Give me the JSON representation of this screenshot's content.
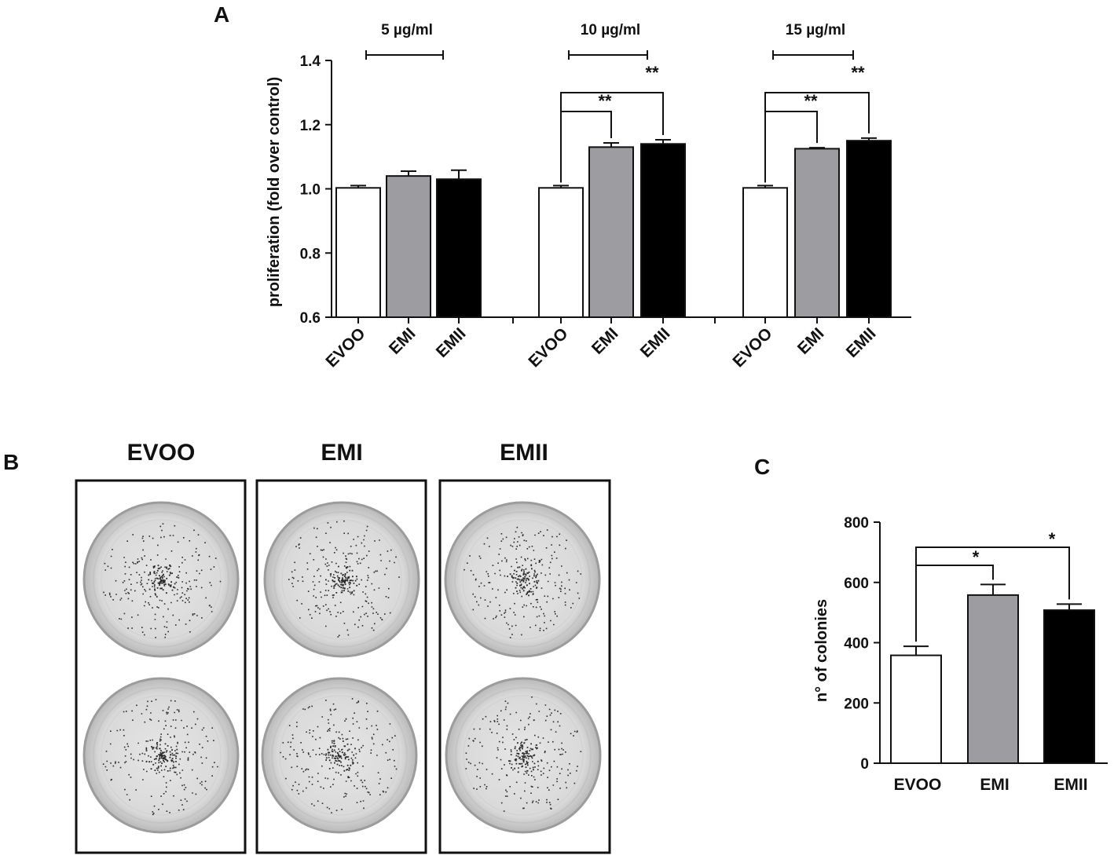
{
  "panel_labels": {
    "a": "A",
    "b": "B",
    "c": "C"
  },
  "colors": {
    "evoo": "#ffffff",
    "emi": "#9d9ca1",
    "emii": "#000000",
    "axis": "#111111"
  },
  "chart_data": [
    {
      "panel": "A",
      "type": "bar",
      "ylabel": "proliferation (fold over control)",
      "ylim": [
        0.6,
        1.4
      ],
      "yticks": [
        "0.6",
        "0.8",
        "1.0",
        "1.2",
        "1.4"
      ],
      "groups": [
        {
          "label": "5 µg/ml",
          "categories": [
            "EVOO",
            "EMI",
            "EMII"
          ],
          "values": [
            1.003,
            1.04,
            1.03
          ],
          "errors": [
            0.007,
            0.015,
            0.028
          ],
          "significance": []
        },
        {
          "label": "10 µg/ml",
          "categories": [
            "EVOO",
            "EMI",
            "EMII"
          ],
          "values": [
            1.003,
            1.13,
            1.14
          ],
          "errors": [
            0.007,
            0.013,
            0.013
          ],
          "significance": [
            {
              "from": 0,
              "to": 1,
              "label": "**"
            },
            {
              "from": 0,
              "to": 2,
              "label": "**"
            }
          ]
        },
        {
          "label": "15 µg/ml",
          "categories": [
            "EVOO",
            "EMI",
            "EMII"
          ],
          "values": [
            1.003,
            1.125,
            1.15
          ],
          "errors": [
            0.007,
            0.003,
            0.008
          ],
          "significance": [
            {
              "from": 0,
              "to": 1,
              "label": "**"
            },
            {
              "from": 0,
              "to": 2,
              "label": "**"
            }
          ]
        }
      ]
    },
    {
      "panel": "C",
      "type": "bar",
      "ylabel": "n° of colonies",
      "ylim": [
        0,
        800
      ],
      "yticks": [
        "0",
        "200",
        "400",
        "600",
        "800"
      ],
      "categories": [
        "EVOO",
        "EMI",
        "EMII"
      ],
      "values": [
        358,
        558,
        508
      ],
      "errors": [
        30,
        35,
        20
      ],
      "significance": [
        {
          "from": 0,
          "to": 1,
          "label": "*"
        },
        {
          "from": 0,
          "to": 2,
          "label": "*"
        }
      ]
    }
  ],
  "panel_b": {
    "columns": [
      "EVOO",
      "EMI",
      "EMII"
    ]
  }
}
